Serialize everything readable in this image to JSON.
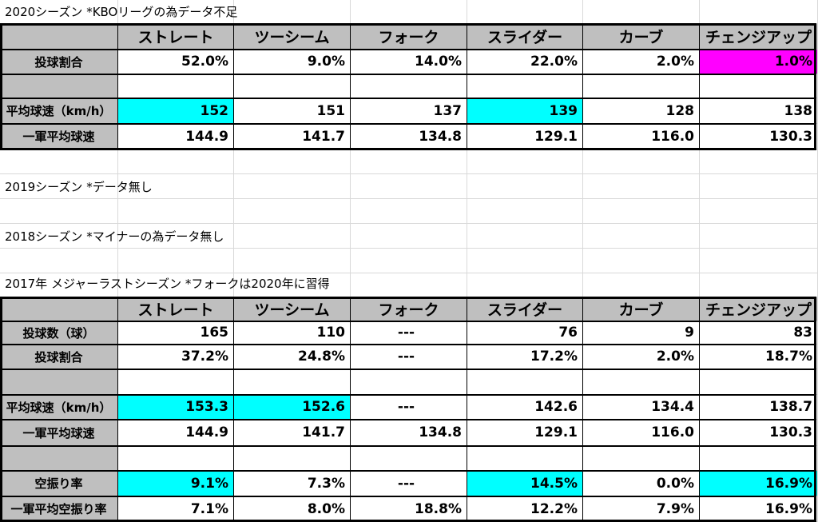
{
  "headers": [
    "ストレート",
    "ツーシーム",
    "フォーク",
    "スライダー",
    "カーブ",
    "チェンジアップ"
  ],
  "season2020": {
    "caption": "2020シーズン *KBOリーグの為データ不足",
    "rows": [
      {
        "label": "投球割合",
        "values": [
          "52.0%",
          "9.0%",
          "14.0%",
          "22.0%",
          "2.0%",
          "1.0%"
        ]
      },
      {
        "label": "",
        "values": [
          "",
          "",
          "",
          "",
          "",
          ""
        ]
      },
      {
        "label": "平均球速（km/h）",
        "values": [
          "152",
          "151",
          "137",
          "139",
          "128",
          "138"
        ]
      },
      {
        "label": "一軍平均球速",
        "values": [
          "144.9",
          "141.7",
          "134.8",
          "129.1",
          "116.0",
          "130.3"
        ]
      }
    ]
  },
  "season2019": {
    "caption": "2019シーズン *データ無し"
  },
  "season2018": {
    "caption": "2018シーズン *マイナーの為データ無し"
  },
  "season2017": {
    "caption": "2017年 メジャーラストシーズン *フォークは2020年に習得",
    "rows": [
      {
        "label": "投球数（球）",
        "values": [
          "165",
          "110",
          "---",
          "76",
          "9",
          "83"
        ]
      },
      {
        "label": "投球割合",
        "values": [
          "37.2%",
          "24.8%",
          "---",
          "17.2%",
          "2.0%",
          "18.7%"
        ]
      },
      {
        "label": "",
        "values": [
          "",
          "",
          "",
          "",
          "",
          ""
        ]
      },
      {
        "label": "平均球速（km/h）",
        "values": [
          "153.3",
          "152.6",
          "---",
          "142.6",
          "134.4",
          "138.7"
        ]
      },
      {
        "label": "一軍平均球速",
        "values": [
          "144.9",
          "141.7",
          "134.8",
          "129.1",
          "116.0",
          "130.3"
        ]
      },
      {
        "label": "",
        "values": [
          "",
          "",
          "",
          "",
          "",
          ""
        ]
      },
      {
        "label": "空振り率",
        "values": [
          "9.1%",
          "7.3%",
          "---",
          "14.5%",
          "0.0%",
          "16.9%"
        ]
      },
      {
        "label": "一軍平均空振り率",
        "values": [
          "7.1%",
          "8.0%",
          "18.8%",
          "12.2%",
          "7.9%",
          "16.9%"
        ]
      }
    ]
  },
  "colors": {
    "label_fill": "#bfbfbf",
    "highlight_cyan": "#00ffff",
    "highlight_magenta": "#ff00ff"
  }
}
